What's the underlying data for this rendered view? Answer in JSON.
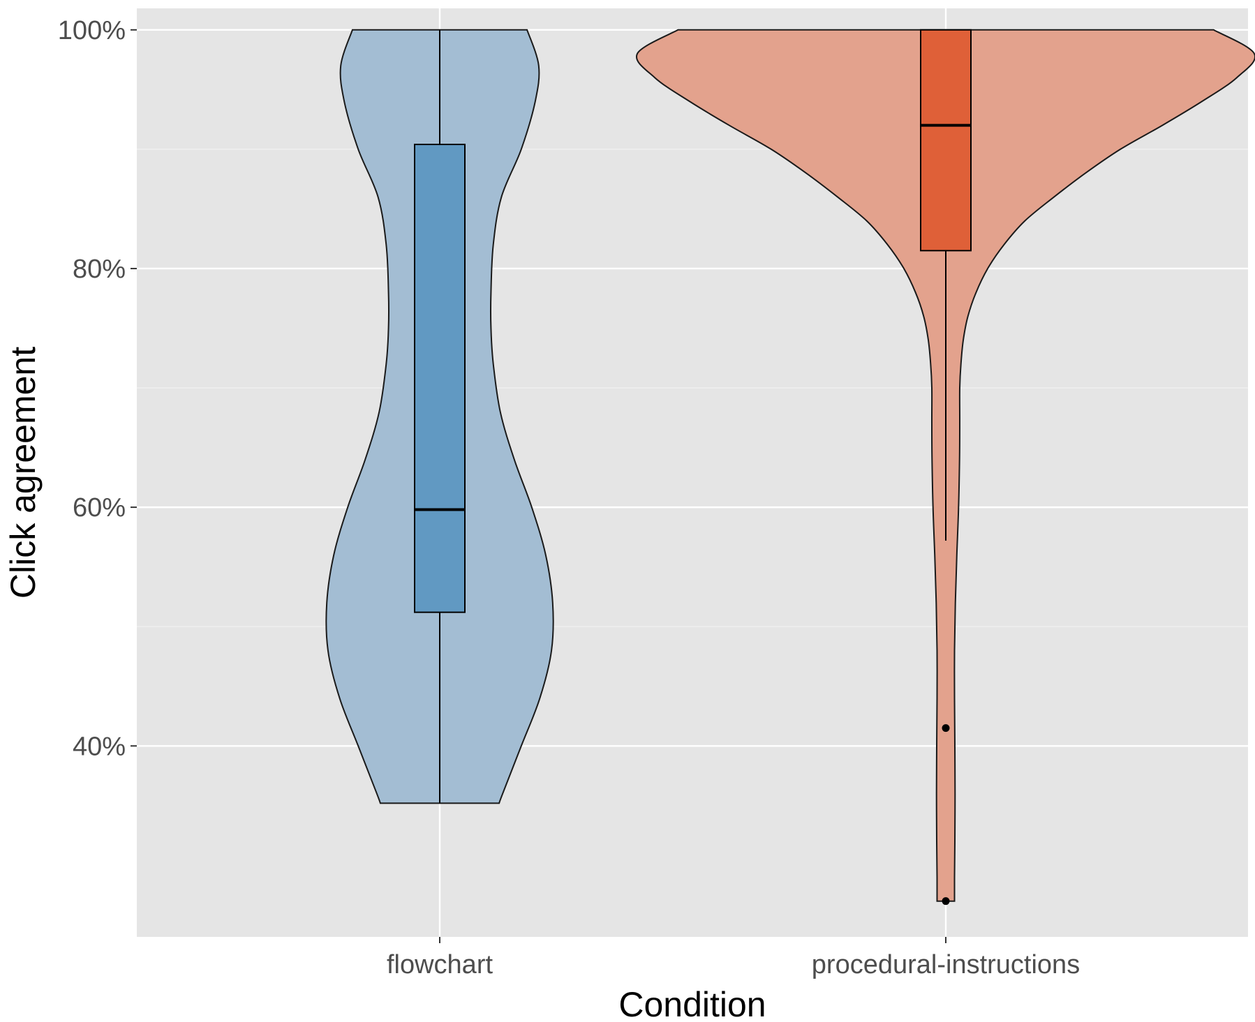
{
  "chart_data": {
    "type": "violin",
    "title": "",
    "xlabel": "Condition",
    "ylabel": "Click agreement",
    "ylim": [
      0.24,
      1.018
    ],
    "y_ticks": [
      0.4,
      0.6,
      0.8,
      1.0
    ],
    "y_tick_labels": [
      "40%",
      "60%",
      "80%",
      "100%"
    ],
    "grid": true,
    "legend": "none",
    "categories": [
      "flowchart",
      "procedural-instructions"
    ],
    "series": [
      {
        "category": "flowchart",
        "violin_color": "#a3bdd3",
        "box_color": "#6199c2",
        "violin_min": 0.352,
        "violin_max": 1.0,
        "density_profile": [
          [
            1.0,
            0.075
          ],
          [
            0.97,
            0.085
          ],
          [
            0.94,
            0.082
          ],
          [
            0.9,
            0.07
          ],
          [
            0.86,
            0.053
          ],
          [
            0.82,
            0.046
          ],
          [
            0.78,
            0.044
          ],
          [
            0.75,
            0.044
          ],
          [
            0.72,
            0.046
          ],
          [
            0.68,
            0.052
          ],
          [
            0.64,
            0.064
          ],
          [
            0.6,
            0.079
          ],
          [
            0.56,
            0.091
          ],
          [
            0.52,
            0.097
          ],
          [
            0.48,
            0.096
          ],
          [
            0.44,
            0.086
          ],
          [
            0.4,
            0.07
          ],
          [
            0.36,
            0.054
          ],
          [
            0.352,
            0.051
          ]
        ],
        "box": {
          "lower_whisker": 0.352,
          "q1": 0.512,
          "median": 0.598,
          "q3": 0.904,
          "upper_whisker": 1.0
        },
        "outliers": []
      },
      {
        "category": "procedural-instructions",
        "violin_color": "#e3a28d",
        "box_color": "#df6038",
        "violin_min": 0.27,
        "violin_max": 1.0,
        "density_profile": [
          [
            1.0,
            0.23
          ],
          [
            0.98,
            0.265
          ],
          [
            0.96,
            0.25
          ],
          [
            0.94,
            0.22
          ],
          [
            0.92,
            0.186
          ],
          [
            0.9,
            0.15
          ],
          [
            0.88,
            0.12
          ],
          [
            0.86,
            0.093
          ],
          [
            0.84,
            0.068
          ],
          [
            0.82,
            0.05
          ],
          [
            0.8,
            0.036
          ],
          [
            0.78,
            0.026
          ],
          [
            0.76,
            0.019
          ],
          [
            0.74,
            0.015
          ],
          [
            0.72,
            0.013
          ],
          [
            0.7,
            0.012
          ],
          [
            0.67,
            0.012
          ],
          [
            0.64,
            0.0118
          ],
          [
            0.6,
            0.011
          ],
          [
            0.56,
            0.0095
          ],
          [
            0.52,
            0.0082
          ],
          [
            0.48,
            0.0075
          ],
          [
            0.44,
            0.0075
          ],
          [
            0.4,
            0.0078
          ],
          [
            0.36,
            0.008
          ],
          [
            0.32,
            0.0078
          ],
          [
            0.29,
            0.0075
          ],
          [
            0.27,
            0.0075
          ]
        ],
        "box": {
          "lower_whisker": 0.572,
          "q1": 0.815,
          "median": 0.92,
          "q3": 1.0,
          "upper_whisker": 1.0
        },
        "outliers": [
          0.415,
          0.27
        ]
      }
    ]
  }
}
